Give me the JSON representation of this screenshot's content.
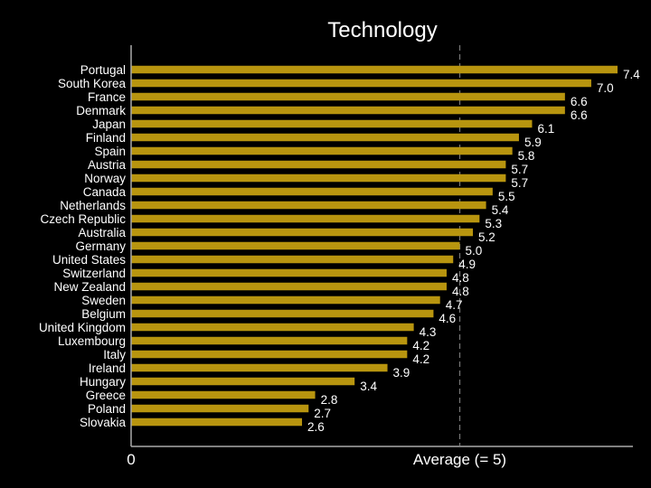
{
  "chart_data": {
    "type": "bar",
    "orientation": "horizontal",
    "title": "Technology",
    "categories": [
      "Portugal",
      "South Korea",
      "France",
      "Denmark",
      "Japan",
      "Finland",
      "Spain",
      "Austria",
      "Norway",
      "Canada",
      "Netherlands",
      "Czech Republic",
      "Australia",
      "Germany",
      "United States",
      "Switzerland",
      "New Zealand",
      "Sweden",
      "Belgium",
      "United Kingdom",
      "Luxembourg",
      "Italy",
      "Ireland",
      "Hungary",
      "Greece",
      "Poland",
      "Slovakia"
    ],
    "values": [
      7.4,
      7.0,
      6.6,
      6.6,
      6.1,
      5.9,
      5.8,
      5.7,
      5.7,
      5.5,
      5.4,
      5.3,
      5.2,
      5.0,
      4.9,
      4.8,
      4.8,
      4.7,
      4.6,
      4.3,
      4.2,
      4.2,
      3.9,
      3.4,
      2.8,
      2.7,
      2.6
    ],
    "value_labels": [
      "7.4",
      "7.0",
      "6.6",
      "6.6",
      "6.1",
      "5.9",
      "5.8",
      "5.7",
      "5.7",
      "5.5",
      "5.4",
      "5.3",
      "5.2",
      "5.0",
      "4.9",
      "4.8",
      "4.8",
      "4.7",
      "4.6",
      "4.3",
      "4.2",
      "4.2",
      "3.9",
      "3.4",
      "2.8",
      "2.7",
      "2.6"
    ],
    "xlim": [
      0,
      7.4
    ],
    "x_start_label": "0",
    "average_label": "Average (= 5)",
    "average_value": 5,
    "bar_color": "#B8950F",
    "background": "#000000",
    "text_color": "#ffffff"
  }
}
